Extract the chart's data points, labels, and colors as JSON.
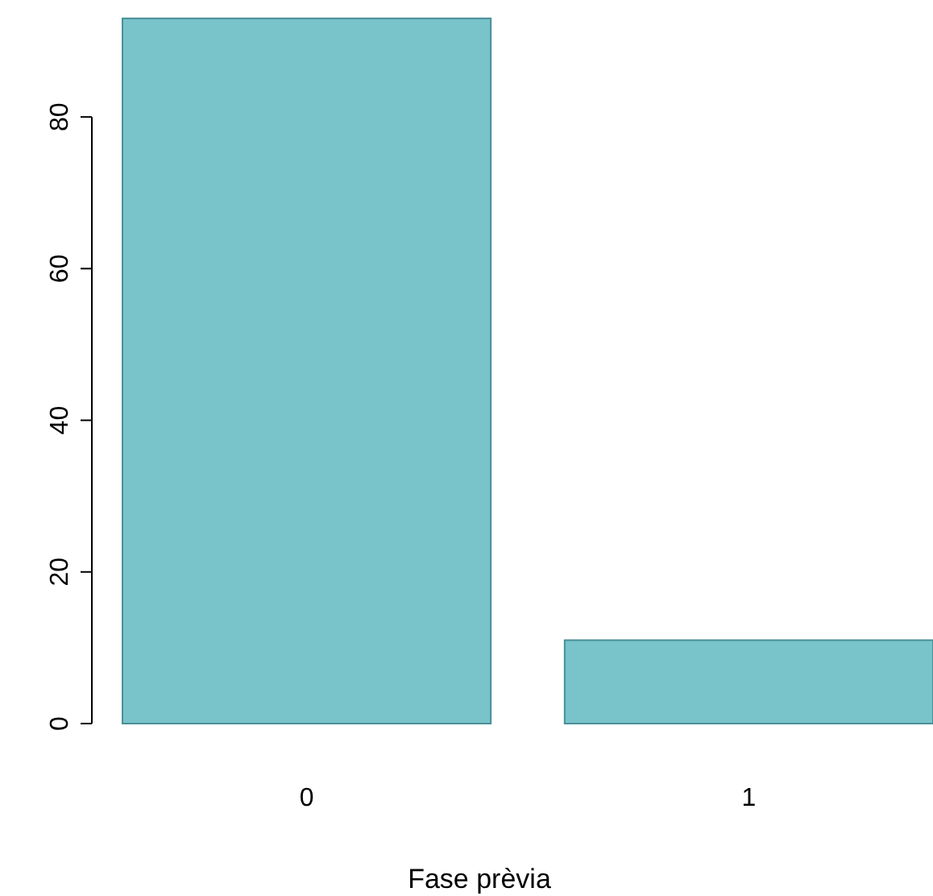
{
  "chart_data": {
    "type": "bar",
    "xlabel": "Fase prèvia",
    "categories": [
      "0",
      "1"
    ],
    "values": [
      93,
      11
    ],
    "color": "#79c3cb",
    "ylim": [
      0,
      95
    ],
    "yticks": [
      0,
      20,
      40,
      60,
      80
    ],
    "grid": false
  }
}
